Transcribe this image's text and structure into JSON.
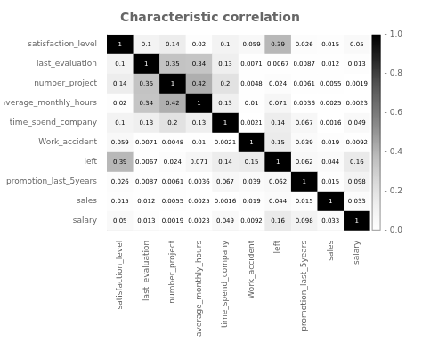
{
  "chart_data": {
    "type": "heatmap",
    "title": "Characteristic correlation",
    "categories": [
      "satisfaction_level",
      "last_evaluation",
      "number_project",
      "average_monthly_hours",
      "time_spend_company",
      "Work_accident",
      "left",
      "promotion_last_5years",
      "sales",
      "salary"
    ],
    "values": [
      [
        1,
        0.1,
        0.14,
        0.02,
        0.1,
        0.059,
        0.39,
        0.026,
        0.015,
        0.05
      ],
      [
        0.1,
        1,
        0.35,
        0.34,
        0.13,
        0.0071,
        0.0067,
        0.0087,
        0.012,
        0.013
      ],
      [
        0.14,
        0.35,
        1,
        0.42,
        0.2,
        0.0048,
        0.024,
        0.0061,
        0.0055,
        0.0019
      ],
      [
        0.02,
        0.34,
        0.42,
        1,
        0.13,
        0.01,
        0.071,
        0.0036,
        0.0025,
        0.0023
      ],
      [
        0.1,
        0.13,
        0.2,
        0.13,
        1,
        0.0021,
        0.14,
        0.067,
        0.0016,
        0.049
      ],
      [
        0.059,
        0.0071,
        0.0048,
        0.01,
        0.0021,
        1,
        0.15,
        0.039,
        0.019,
        0.0092
      ],
      [
        0.39,
        0.0067,
        0.024,
        0.071,
        0.14,
        0.15,
        1,
        0.062,
        0.044,
        0.16
      ],
      [
        0.026,
        0.0087,
        0.0061,
        0.0036,
        0.067,
        0.039,
        0.062,
        1,
        0.015,
        0.098
      ],
      [
        0.015,
        0.012,
        0.0055,
        0.0025,
        0.0016,
        0.019,
        0.044,
        0.015,
        1,
        0.033
      ],
      [
        0.05,
        0.013,
        0.0019,
        0.0023,
        0.049,
        0.0092,
        0.16,
        0.098,
        0.033,
        1
      ]
    ],
    "clim": [
      0,
      1
    ],
    "cticks": [
      {
        "value": 0,
        "label": "- 0.0"
      },
      {
        "value": 0.2,
        "label": "- 0.2"
      },
      {
        "value": 0.4,
        "label": "- 0.4"
      },
      {
        "value": 0.6,
        "label": "- 0.6"
      },
      {
        "value": 0.8,
        "label": "- 0.8"
      },
      {
        "value": 1,
        "label": "- 1.0"
      }
    ],
    "data_labels": true,
    "grid": false
  }
}
